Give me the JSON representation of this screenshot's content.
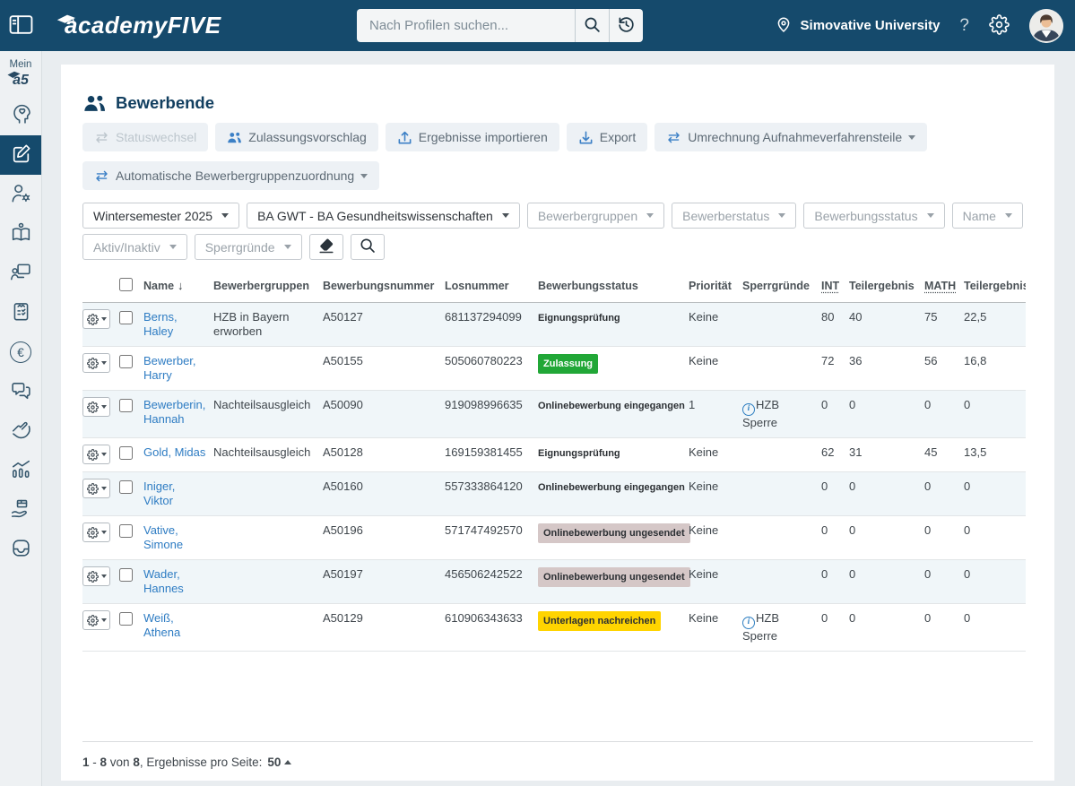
{
  "colors": {
    "header_bg": "#154a6c",
    "accent_blue": "#3c80c6",
    "link_blue": "#2e7cc3",
    "badge_green": "#21a737",
    "badge_yellow": "#ffd400",
    "badge_gray": "#d5c7c7",
    "row_tint": "#f0f6f9",
    "title_navy": "#123f60"
  },
  "header": {
    "logo_text": "academyFIVE",
    "search_placeholder": "Nach Profilen suchen...",
    "university_name": "Simovative University",
    "help_label": "?"
  },
  "sidebar": {
    "mein_label": "Mein",
    "logo_short": "a5",
    "items": [
      {
        "name": "profile-heart-icon"
      },
      {
        "name": "edit-application-icon",
        "active": true
      },
      {
        "name": "person-settings-icon"
      },
      {
        "name": "study-book-icon"
      },
      {
        "name": "trainer-presentation-icon"
      },
      {
        "name": "clipboard-tasks-icon"
      },
      {
        "name": "euro-finance-icon"
      },
      {
        "name": "chat-messages-icon"
      },
      {
        "name": "hand-interaction-icon"
      },
      {
        "name": "statistics-chart-icon"
      },
      {
        "name": "delivery-service-icon"
      },
      {
        "name": "inbox-tray-icon"
      }
    ]
  },
  "main": {
    "title": "Bewerbende",
    "toolbar": [
      {
        "label": "Statuswechsel",
        "icon": "transfer",
        "disabled": true,
        "dropdown": false,
        "row": 1
      },
      {
        "label": "Zulassungsvorschlag",
        "icon": "group",
        "disabled": false,
        "dropdown": false,
        "row": 1
      },
      {
        "label": "Ergebnisse importieren",
        "icon": "upload",
        "disabled": false,
        "dropdown": false,
        "row": 1
      },
      {
        "label": "Export",
        "icon": "download",
        "disabled": false,
        "dropdown": false,
        "row": 1
      },
      {
        "label": "Umrechnung Aufnahmeverfahrensteile",
        "icon": "transfer",
        "disabled": false,
        "dropdown": true,
        "row": 1
      },
      {
        "label": "Automatische Bewerbergruppenzuordnung",
        "icon": "transfer",
        "disabled": false,
        "dropdown": true,
        "row": 2
      }
    ],
    "filters": [
      {
        "label": "Wintersemester 2025",
        "selected": true,
        "row": 1
      },
      {
        "label": "BA GWT - BA Gesundheitswissenschaften",
        "selected": true,
        "row": 1
      },
      {
        "label": "Bewerbergruppen",
        "selected": false,
        "row": 1
      },
      {
        "label": "Bewerberstatus",
        "selected": false,
        "row": 1
      },
      {
        "label": "Bewerbungsstatus",
        "selected": false,
        "row": 1
      },
      {
        "label": "Name",
        "selected": false,
        "row": 1
      },
      {
        "label": "Aktiv/Inaktiv",
        "selected": false,
        "row": 2
      },
      {
        "label": "Sperrgründe",
        "selected": false,
        "row": 2
      }
    ],
    "table": {
      "columns": [
        "Name",
        "Bewerbergruppen",
        "Bewerbungsnummer",
        "Losnummer",
        "Bewerbungsstatus",
        "Priorität",
        "Sperrgründe",
        "INT",
        "Teilergebnis",
        "MATH",
        "Teilergebnis"
      ],
      "sort_column": "Name",
      "sort_indicator": "↓",
      "rows": [
        {
          "name": "Berns, Haley",
          "gruppen": "HZB in Bayern erworben",
          "nummer": "A50127",
          "losnummer": "681137294099",
          "status": "Eignungsprüfung",
          "status_style": "plain",
          "prioritaet": "Keine",
          "sperrgruende": "",
          "int": "80",
          "teilergebnis_int": "40",
          "math": "75",
          "teilergebnis_math": "22,5"
        },
        {
          "name": "Bewerber, Harry",
          "gruppen": "",
          "nummer": "A50155",
          "losnummer": "505060780223",
          "status": "Zulassung",
          "status_style": "green",
          "prioritaet": "Keine",
          "sperrgruende": "",
          "int": "72",
          "teilergebnis_int": "36",
          "math": "56",
          "teilergebnis_math": "16,8"
        },
        {
          "name": "Bewerberin, Hannah",
          "gruppen": "Nachteilsausgleich",
          "nummer": "A50090",
          "losnummer": "919098996635",
          "status": "Onlinebewerbung eingegangen",
          "status_style": "plain",
          "prioritaet": "1",
          "sperrgruende": "HZB Sperre",
          "int": "0",
          "teilergebnis_int": "0",
          "math": "0",
          "teilergebnis_math": "0"
        },
        {
          "name": "Gold, Midas",
          "gruppen": "Nachteilsausgleich",
          "nummer": "A50128",
          "losnummer": "169159381455",
          "status": "Eignungsprüfung",
          "status_style": "plain",
          "prioritaet": "Keine",
          "sperrgruende": "",
          "int": "62",
          "teilergebnis_int": "31",
          "math": "45",
          "teilergebnis_math": "13,5"
        },
        {
          "name": "Iniger, Viktor",
          "gruppen": "",
          "nummer": "A50160",
          "losnummer": "557333864120",
          "status": "Onlinebewerbung eingegangen",
          "status_style": "plain",
          "prioritaet": "Keine",
          "sperrgruende": "",
          "int": "0",
          "teilergebnis_int": "0",
          "math": "0",
          "teilergebnis_math": "0"
        },
        {
          "name": "Vative, Simone",
          "gruppen": "",
          "nummer": "A50196",
          "losnummer": "571747492570",
          "status": "Onlinebewerbung ungesendet",
          "status_style": "gray",
          "prioritaet": "Keine",
          "sperrgruende": "",
          "int": "0",
          "teilergebnis_int": "0",
          "math": "0",
          "teilergebnis_math": "0"
        },
        {
          "name": "Wader, Hannes",
          "gruppen": "",
          "nummer": "A50197",
          "losnummer": "456506242522",
          "status": "Onlinebewerbung ungesendet",
          "status_style": "gray",
          "prioritaet": "Keine",
          "sperrgruende": "",
          "int": "0",
          "teilergebnis_int": "0",
          "math": "0",
          "teilergebnis_math": "0"
        },
        {
          "name": "Weiß, Athena",
          "gruppen": "",
          "nummer": "A50129",
          "losnummer": "610906343633",
          "status": "Unterlagen nachreichen",
          "status_style": "yellow",
          "prioritaet": "Keine",
          "sperrgruende": "HZB Sperre",
          "int": "0",
          "teilergebnis_int": "0",
          "math": "0",
          "teilergebnis_math": "0"
        }
      ]
    },
    "pagination": {
      "start": "1",
      "separator": " - ",
      "end": "8",
      "of_label": " von ",
      "total": "8",
      "label": ", Ergebnisse pro Seite:",
      "page_size": "50"
    }
  }
}
